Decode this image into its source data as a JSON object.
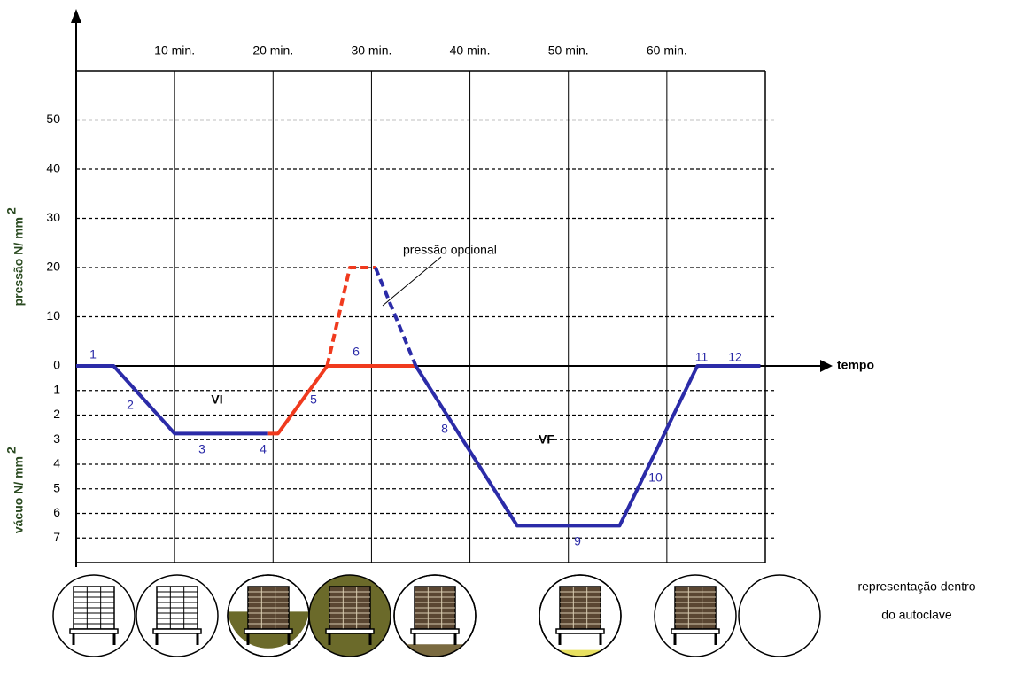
{
  "chart_data": {
    "type": "line",
    "xlabel": "tempo",
    "ylabel": "pressão N/ mm",
    "ylabel_sup": "2",
    "y2label": "vácuo N/ mm",
    "y2label_sup": "2",
    "xlim": [
      0,
      70
    ],
    "xticks": [
      {
        "value": 10,
        "label": "10 min."
      },
      {
        "value": 20,
        "label": "20 min."
      },
      {
        "value": 30,
        "label": "30 min."
      },
      {
        "value": 40,
        "label": "40 min."
      },
      {
        "value": 50,
        "label": "50 min."
      },
      {
        "value": 60,
        "label": "60 min."
      }
    ],
    "ylim": [
      0,
      60
    ],
    "yticks": [
      0,
      10,
      20,
      30,
      40,
      50
    ],
    "y2lim": [
      0,
      8
    ],
    "y2ticks": [
      1,
      2,
      3,
      4,
      5,
      6,
      7
    ],
    "grid": true,
    "series": [
      {
        "color": "#2b2ba8",
        "axis": "y2",
        "dash": false,
        "x": [
          0,
          3.8,
          10,
          19.5
        ],
        "values": [
          0,
          0,
          2.75,
          2.75
        ]
      },
      {
        "color": "#f03a1e",
        "axis": "y2",
        "dash": false,
        "x": [
          19.5,
          20.5,
          25.5,
          34.5
        ],
        "values": [
          2.75,
          2.75,
          0,
          0
        ]
      },
      {
        "color": "#f03a1e",
        "axis": "y",
        "dash": true,
        "x": [
          25.5,
          27.8,
          30.4
        ],
        "values": [
          0,
          20,
          20
        ]
      },
      {
        "color": "#2b2ba8",
        "axis": "y",
        "dash": true,
        "x": [
          30.4,
          34.5
        ],
        "values": [
          20,
          0
        ]
      },
      {
        "color": "#2b2ba8",
        "axis": "y2",
        "dash": false,
        "x": [
          34.5,
          44.8,
          55.2,
          63.1,
          69.5
        ],
        "values": [
          0,
          6.5,
          6.5,
          0,
          0
        ]
      }
    ],
    "point_labels": [
      "1",
      "2",
      "3",
      "4",
      "5",
      "6",
      "8",
      "9",
      "10",
      "11",
      "12"
    ],
    "annotations": [
      "VI",
      "VF",
      "pressão opcional"
    ],
    "caption": [
      "representação dentro",
      "do autoclave"
    ]
  }
}
